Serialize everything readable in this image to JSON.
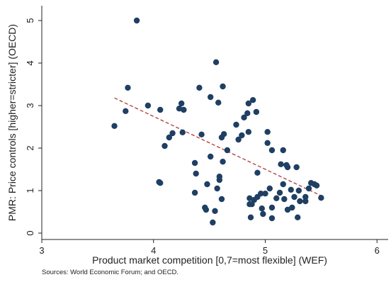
{
  "chart_data": {
    "type": "scatter",
    "xlabel": "Product market competition [0,7=most flexible] (WEF)",
    "ylabel": "PMR: Price controls [higher=stricter] (OECD)",
    "xlim": [
      3,
      6.1
    ],
    "ylim": [
      -0.15,
      5.35
    ],
    "x_ticks": [
      3,
      4,
      5,
      6
    ],
    "y_ticks": [
      0,
      1,
      2,
      3,
      4,
      5
    ],
    "grid": false,
    "point_color": "#1f3f63",
    "trend_color": "#b03a3a",
    "trend_style": "dashed",
    "trend_x": [
      3.65,
      5.5
    ],
    "trend_y": [
      3.18,
      0.88
    ],
    "points": [
      [
        3.65,
        2.52
      ],
      [
        3.75,
        2.87
      ],
      [
        3.77,
        3.42
      ],
      [
        3.85,
        5.0
      ],
      [
        3.95,
        3.0
      ],
      [
        4.05,
        1.2
      ],
      [
        4.06,
        1.18
      ],
      [
        4.06,
        2.9
      ],
      [
        4.1,
        2.05
      ],
      [
        4.14,
        2.25
      ],
      [
        4.17,
        2.35
      ],
      [
        4.23,
        2.93
      ],
      [
        4.25,
        3.05
      ],
      [
        4.26,
        2.37
      ],
      [
        4.27,
        2.9
      ],
      [
        4.37,
        1.65
      ],
      [
        4.37,
        0.95
      ],
      [
        4.38,
        1.4
      ],
      [
        4.41,
        3.42
      ],
      [
        4.43,
        2.32
      ],
      [
        4.46,
        0.6
      ],
      [
        4.47,
        0.55
      ],
      [
        4.48,
        1.15
      ],
      [
        4.51,
        1.8
      ],
      [
        4.51,
        3.2
      ],
      [
        4.53,
        0.25
      ],
      [
        4.55,
        0.52
      ],
      [
        4.56,
        4.02
      ],
      [
        4.57,
        1.05
      ],
      [
        4.58,
        3.07
      ],
      [
        4.59,
        1.25
      ],
      [
        4.59,
        1.33
      ],
      [
        4.61,
        2.25
      ],
      [
        4.61,
        0.8
      ],
      [
        4.62,
        3.45
      ],
      [
        4.62,
        1.68
      ],
      [
        4.63,
        2.33
      ],
      [
        4.66,
        1.95
      ],
      [
        4.74,
        2.55
      ],
      [
        4.76,
        2.2
      ],
      [
        4.79,
        2.3
      ],
      [
        4.81,
        2.72
      ],
      [
        4.84,
        2.82
      ],
      [
        4.85,
        2.38
      ],
      [
        4.85,
        3.05
      ],
      [
        4.86,
        0.82
      ],
      [
        4.86,
        0.68
      ],
      [
        4.87,
        0.37
      ],
      [
        4.88,
        0.68
      ],
      [
        4.89,
        3.13
      ],
      [
        4.9,
        0.78
      ],
      [
        4.92,
        2.85
      ],
      [
        4.93,
        0.85
      ],
      [
        4.93,
        1.42
      ],
      [
        4.96,
        0.93
      ],
      [
        4.97,
        0.58
      ],
      [
        4.98,
        0.45
      ],
      [
        5.0,
        0.93
      ],
      [
        5.02,
        2.12
      ],
      [
        5.02,
        2.38
      ],
      [
        5.04,
        1.05
      ],
      [
        5.06,
        1.95
      ],
      [
        5.06,
        0.35
      ],
      [
        5.06,
        0.6
      ],
      [
        5.1,
        0.82
      ],
      [
        5.13,
        0.95
      ],
      [
        5.14,
        1.62
      ],
      [
        5.16,
        1.15
      ],
      [
        5.16,
        1.95
      ],
      [
        5.17,
        0.8
      ],
      [
        5.19,
        1.6
      ],
      [
        5.2,
        0.55
      ],
      [
        5.2,
        1.55
      ],
      [
        5.23,
        1.02
      ],
      [
        5.24,
        0.6
      ],
      [
        5.26,
        0.85
      ],
      [
        5.28,
        1.55
      ],
      [
        5.29,
        0.37
      ],
      [
        5.3,
        1.0
      ],
      [
        5.31,
        0.75
      ],
      [
        5.36,
        0.75
      ],
      [
        5.36,
        0.85
      ],
      [
        5.39,
        1.05
      ],
      [
        5.41,
        1.18
      ],
      [
        5.44,
        1.15
      ],
      [
        5.46,
        1.12
      ],
      [
        5.5,
        0.83
      ]
    ]
  },
  "source_text": "Sources: World Economic Forum; and OECD."
}
